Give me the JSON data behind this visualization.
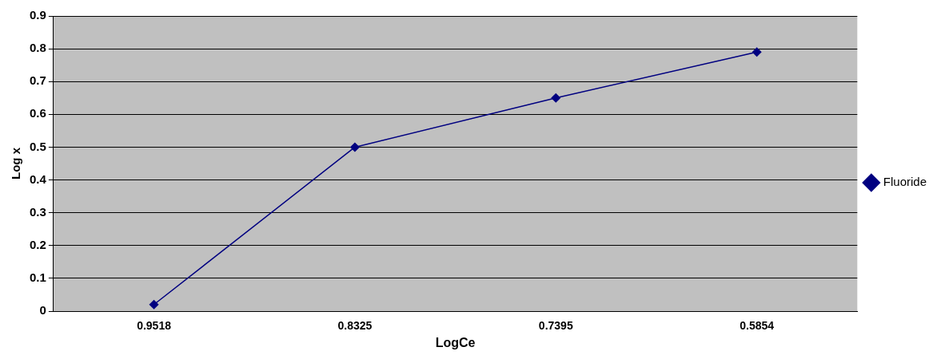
{
  "chart_data": {
    "type": "line",
    "xlabel": "LogCe",
    "ylabel": "Log x",
    "categories": [
      "0.9518",
      "0.8325",
      "0.7395",
      "0.5854"
    ],
    "series": [
      {
        "name": "Fluoride",
        "color": "#000080",
        "values": [
          0.02,
          0.5,
          0.65,
          0.79
        ]
      }
    ],
    "ylim": [
      0,
      0.9
    ],
    "yticks": [
      0,
      0.1,
      0.2,
      0.3,
      0.4,
      0.5,
      0.6,
      0.7,
      0.8,
      0.9
    ],
    "grid": "y",
    "legend": "right",
    "marker": "diamond",
    "line_style": "solid"
  }
}
